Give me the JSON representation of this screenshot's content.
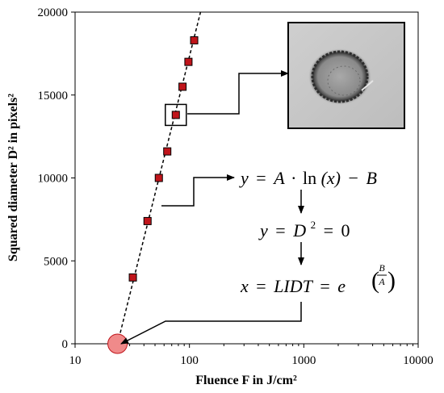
{
  "chart_data": {
    "type": "scatter",
    "xlabel": "Fluence F in J/cm²",
    "ylabel": "Squared diameter D² in pixels²",
    "xscale": "log",
    "xlim": [
      10,
      10000
    ],
    "ylim": [
      0,
      20000
    ],
    "xticks": [
      "10",
      "100",
      "1000",
      "10000"
    ],
    "yticks": [
      "0",
      "5000",
      "10000",
      "15000",
      "20000"
    ],
    "grid": false,
    "series": [
      {
        "points": [
          {
            "x": 32,
            "y": 4000
          },
          {
            "x": 43,
            "y": 7400
          },
          {
            "x": 54,
            "y": 10000
          },
          {
            "x": 64,
            "y": 11600
          },
          {
            "x": 76,
            "y": 13800
          },
          {
            "x": 87,
            "y": 15500
          },
          {
            "x": 98,
            "y": 17000
          },
          {
            "x": 110,
            "y": 18300
          }
        ],
        "marker_color": "#c0151b"
      }
    ],
    "fit_line": {
      "style": "dashed",
      "from": {
        "x": 23.5,
        "y": 0
      },
      "to": {
        "x": 125,
        "y": 20000
      }
    },
    "lidt_marker": {
      "x": 23.5,
      "y": 0,
      "color": "#f08a8a"
    },
    "highlighted_point": {
      "x": 76,
      "y": 13800
    }
  },
  "annotations": {
    "eq1": {
      "lhs": "y",
      "eq": "=",
      "a": "A",
      "dot": "·",
      "ln": "ln",
      "arg": "(x)",
      "minus": "−",
      "b": "B"
    },
    "eq2": {
      "y": "y",
      "eq": "=",
      "d": "D",
      "sup": "2",
      "eq2": "=",
      "zero": "0"
    },
    "eq3": {
      "x": "x",
      "eq": "=",
      "lidt": "LIDT",
      "eq2": "=",
      "e": "e",
      "num": "B",
      "den": "A"
    }
  }
}
